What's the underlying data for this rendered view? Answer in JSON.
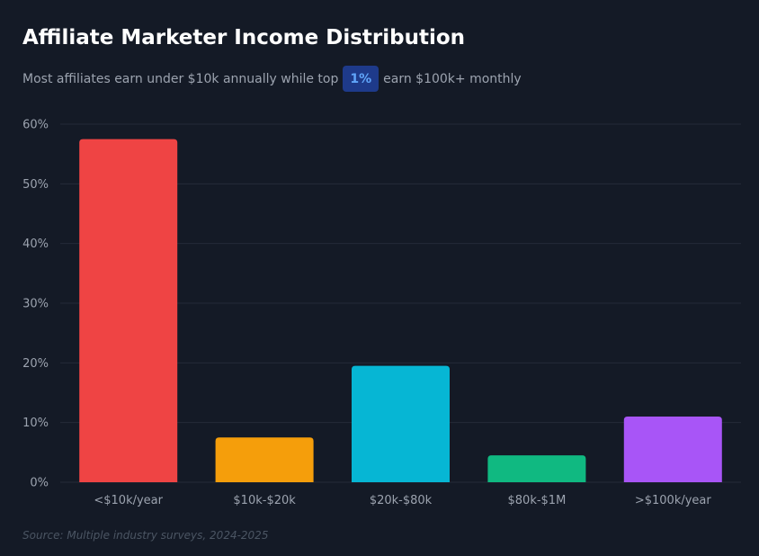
{
  "header": {
    "title": "Affiliate Marketer Income Distribution",
    "subtitle_before": "Most affiliates earn under $10k annually while top",
    "subtitle_highlight": "1%",
    "subtitle_after": "earn $100k+ monthly"
  },
  "footer": {
    "source": "Source: Multiple industry surveys, 2024-2025"
  },
  "colors": {
    "background": "#141a26",
    "highlight_bg": "#1e3a8a",
    "highlight_text": "#60a5fa",
    "grid": "#252b38"
  },
  "chart_data": {
    "type": "bar",
    "title": "Affiliate Marketer Income Distribution",
    "xlabel": "",
    "ylabel": "",
    "categories": [
      "<$10k/year",
      "$10k-$20k",
      "$20k-$80k",
      "$80k-$1M",
      ">$100k/year"
    ],
    "values": [
      57.5,
      7.5,
      19.5,
      4.5,
      11
    ],
    "bar_colors": [
      "#ef4444",
      "#f59e0b",
      "#06b6d4",
      "#10b981",
      "#a855f7"
    ],
    "ylim": [
      0,
      60
    ],
    "y_ticks": [
      "0%",
      "10%",
      "20%",
      "30%",
      "40%",
      "50%",
      "60%"
    ],
    "grid": true,
    "legend": "none"
  }
}
